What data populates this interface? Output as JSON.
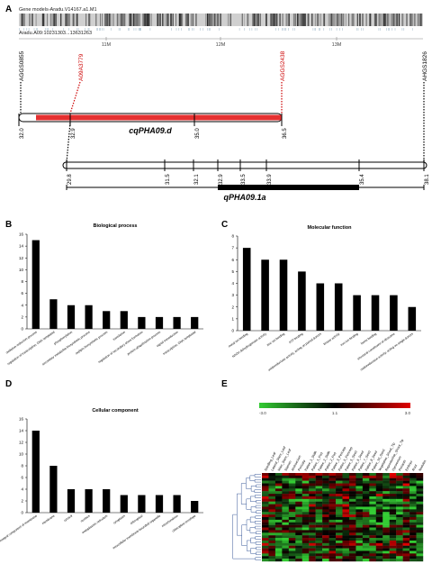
{
  "panel_letters": [
    "A",
    "B",
    "C",
    "D",
    "E"
  ],
  "panel_a": {
    "track_title": "Gene models-Aradu.V14167.a1.M1",
    "track_range": "Aradu.A09:10231303...13631263",
    "ticks": [
      "11M",
      "12M",
      "13M"
    ],
    "markers": [
      {
        "label": "AGGS0855",
        "color": "#000000"
      },
      {
        "label": "A09A3779",
        "color": "#cc0000"
      },
      {
        "label": "AGGS2438",
        "color": "#cc0000"
      },
      {
        "label": "AHGS1826",
        "color": "#000000"
      }
    ],
    "qtl1": {
      "name": "cqPHA09.d",
      "positions": [
        "32.0",
        "32.9",
        "35.0",
        "36.5"
      ]
    },
    "qtl2": {
      "name": "qPHA09.1a",
      "positions": [
        "29.8",
        "31.5",
        "32.1",
        "32.9",
        "33.5",
        "33.9",
        "35.4",
        "38.1"
      ]
    }
  },
  "chart_data": [
    {
      "type": "bar",
      "title": "Biological process",
      "categories": [
        "oxidation-reduction process",
        "regulation of transcription, DNA-templated",
        "phosphorylation",
        "secondary metabolite biosynthetic process",
        "oxylipin biosynthetic process",
        "translation",
        "regulation of secondary shoot formation",
        "protein ubiquitination process",
        "signal transduction",
        "transcription, DNA-templated"
      ],
      "values": [
        15,
        5,
        4,
        4,
        3,
        3,
        2,
        2,
        2,
        2
      ],
      "ylim": [
        0,
        16
      ],
      "yticks": [
        "0",
        "2",
        "4",
        "6",
        "8",
        "10",
        "12",
        "14",
        "16"
      ]
    },
    {
      "type": "bar",
      "title": "Molecular function",
      "categories": [
        "metal ion binding",
        "NADH dehydrogenase activity",
        "zinc ion binding",
        "ATP binding",
        "oxidoreductase activity, acting on paired donors",
        "kinase activity",
        "iron ion binding",
        "heme binding",
        "structural constituent of ribosome",
        "oxidoreductase activity, acting on single donors"
      ],
      "values": [
        7,
        6,
        6,
        5,
        4,
        4,
        3,
        3,
        3,
        2
      ],
      "ylim": [
        0,
        8
      ],
      "yticks": [
        "0",
        "1",
        "2",
        "3",
        "4",
        "5",
        "6",
        "7",
        "8"
      ]
    },
    {
      "type": "bar",
      "title": "Cellular component",
      "categories": [
        "integral component of membrane",
        "membrane",
        "cytosol",
        "nucleus",
        "endoplasmic reticulum",
        "cytoplasm",
        "chloroplast",
        "intracellular membrane-bounded organelle",
        "mitochondrion",
        "chloroplast envelope"
      ],
      "values": [
        14,
        8,
        4,
        4,
        4,
        3,
        3,
        3,
        3,
        2
      ],
      "ylim": [
        0,
        16
      ],
      "yticks": [
        "0",
        "2",
        "4",
        "6",
        "8",
        "10",
        "12",
        "14",
        "16"
      ]
    },
    {
      "type": "heatmap",
      "legend_ticks": [
        "-3.0",
        "1.1",
        "3.0"
      ],
      "legend_colors": [
        "#33cc33",
        "#000000",
        "#e00000"
      ],
      "columns": [
        "Seedling_Leaf",
        "Lateral_Stem_Leaf",
        "Main_Stem_Leaf",
        "Stamen",
        "Androecium",
        "Pericarp",
        "Pattee_1_Stalk",
        "Pattee_1_Pod",
        "Pattee_2_Stalk",
        "Pattee_2_Pod",
        "Pattee_3_Pericarp",
        "Pattee_5_Pericarp",
        "Pattee_5_Seed",
        "Pattee_6_Seed",
        "Pattee_7_Seed",
        "Pattee_8_Seed",
        "Pattee_10_Seed",
        "Vegetative_Shoot_Tip",
        "Reproductive_Shoot_Tip",
        "Gynoecium",
        "Perianth",
        "Embryo",
        "Root",
        "Nodules"
      ]
    }
  ]
}
